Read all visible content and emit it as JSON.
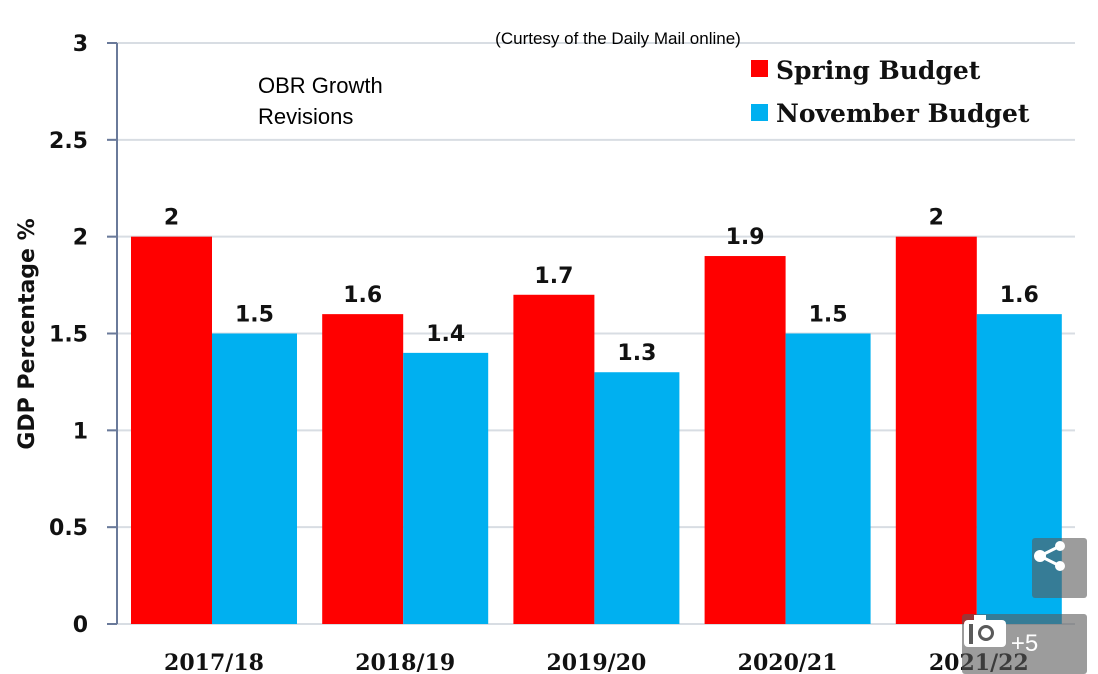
{
  "chart_data": {
    "type": "bar",
    "title": "OBR Growth Revisions",
    "title_lines": [
      "OBR Growth",
      "Revisions"
    ],
    "credit": "(Curtesy of the Daily Mail online)",
    "xlabel": "",
    "ylabel": "GDP Percentage %",
    "ylim": [
      0,
      3
    ],
    "yticks": [
      "0",
      "0.5",
      "1",
      "1.5",
      "2",
      "2.5",
      "3"
    ],
    "grid": true,
    "legend_position": "top-right",
    "categories": [
      "2017/18",
      "2018/19",
      "2019/20",
      "2020/21",
      "2021/22"
    ],
    "series": [
      {
        "name": "Spring Budget",
        "color": "#ff0000",
        "values": [
          2,
          1.6,
          1.7,
          1.9,
          2
        ],
        "labels": [
          "2",
          "1.6",
          "1.7",
          "1.9",
          "2"
        ]
      },
      {
        "name": "November Budget",
        "color": "#00b0f0",
        "values": [
          1.5,
          1.4,
          1.3,
          1.5,
          1.6
        ],
        "labels": [
          "1.5",
          "1.4",
          "1.3",
          "1.5",
          "1.6"
        ]
      }
    ]
  },
  "overlay": {
    "share_icon": "share-icon",
    "gallery_icon": "camera-icon",
    "gallery_count": "+5"
  }
}
